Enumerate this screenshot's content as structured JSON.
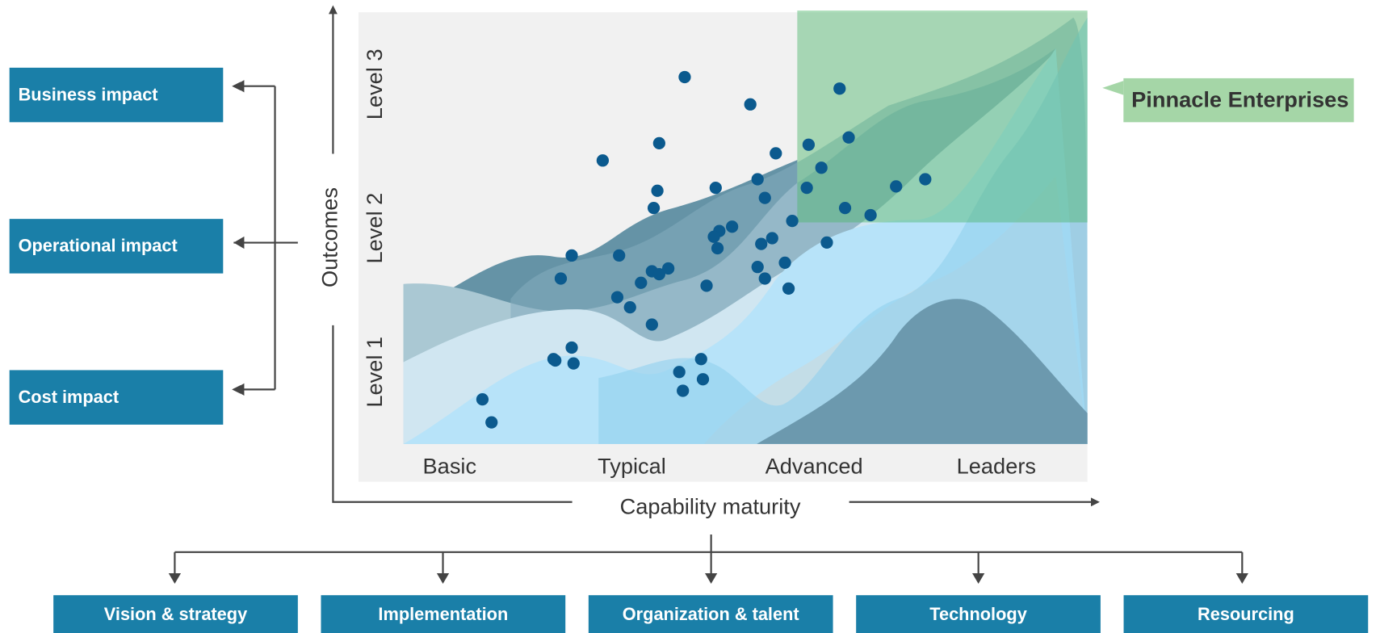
{
  "chart_data": {
    "type": "scatter",
    "x_label": "Capability maturity",
    "y_label": "Outcomes",
    "xlim": [
      0,
      4
    ],
    "ylim": [
      0,
      3
    ],
    "xticks": [
      {
        "value": 0.5,
        "label": "Basic"
      },
      {
        "value": 1.5,
        "label": "Typical"
      },
      {
        "value": 2.5,
        "label": "Advanced"
      },
      {
        "value": 3.5,
        "label": "Leaders"
      }
    ],
    "yticks": [
      {
        "value": 0.5,
        "label": "Level 1"
      },
      {
        "value": 1.5,
        "label": "Level 2"
      },
      {
        "value": 2.5,
        "label": "Level 3"
      }
    ],
    "highlight_label": "Pinnacle Enterprises",
    "series": [
      {
        "color": "#0b5a8e",
        "x": [
          1.79,
          2.15,
          2.64,
          1.65,
          1.34,
          2.69,
          2.29,
          2.47,
          2.54,
          2.19,
          1.96,
          1.64,
          2.23,
          2.46,
          2.95,
          3.11,
          1.62,
          2.67,
          2.81,
          2.38,
          2.05,
          1.98,
          1.95,
          2.27,
          2.21,
          1.97,
          2.57,
          1.17,
          1.43,
          2.34,
          2.19,
          1.7,
          1.61,
          1.65,
          1.11,
          1.55,
          1.91,
          2.23,
          2.36,
          1.42,
          1.49,
          1.61,
          1.17,
          1.07,
          1.08,
          1.18,
          1.88,
          1.76,
          1.89,
          1.78,
          0.68,
          0.73
        ],
        "values": [
          2.55,
          2.36,
          2.47,
          2.09,
          1.97,
          2.13,
          2.02,
          2.08,
          1.92,
          1.84,
          1.78,
          1.76,
          1.71,
          1.78,
          1.79,
          1.84,
          1.64,
          1.64,
          1.59,
          1.55,
          1.51,
          1.48,
          1.44,
          1.43,
          1.39,
          1.36,
          1.4,
          1.31,
          1.31,
          1.26,
          1.23,
          1.22,
          1.2,
          1.18,
          1.15,
          1.12,
          1.1,
          1.15,
          1.08,
          1.02,
          0.95,
          0.83,
          0.67,
          0.59,
          0.58,
          0.56,
          0.59,
          0.5,
          0.45,
          0.37,
          0.31,
          0.15
        ]
      }
    ]
  },
  "impact_boxes": [
    "Business impact",
    "Operational impact",
    "Cost impact"
  ],
  "dimension_boxes": [
    "Vision & strategy",
    "Implementation",
    "Organization & talent",
    "Technology",
    "Resourcing"
  ]
}
